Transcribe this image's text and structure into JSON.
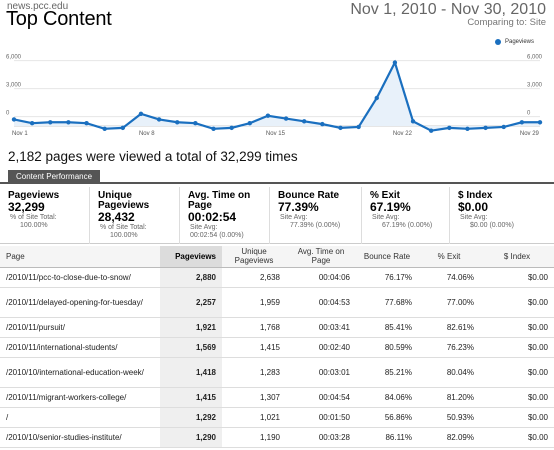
{
  "header": {
    "site": "news.pcc.edu",
    "title": "Top Content",
    "date_range": "Nov 1, 2010 - Nov 30, 2010",
    "comparing": "Comparing to: Site"
  },
  "chart_data": {
    "type": "line",
    "series": [
      {
        "name": "Pageviews",
        "color": "#1a6fbf"
      }
    ],
    "y_ticks_left": [
      "6,000",
      "3,000",
      "0"
    ],
    "y_ticks_right": [
      "6,000",
      "3,000",
      "0"
    ],
    "x_labels": [
      "Nov 1",
      "Nov 8",
      "Nov 15",
      "Nov 22",
      "Nov 29"
    ],
    "ylim": [
      -1000,
      6500
    ],
    "x": [
      1,
      2,
      3,
      4,
      5,
      6,
      7,
      8,
      9,
      10,
      11,
      12,
      13,
      14,
      15,
      16,
      17,
      18,
      19,
      20,
      21,
      22,
      23,
      24,
      25,
      26,
      27,
      28,
      29,
      30
    ],
    "values": [
      -300,
      -700,
      -600,
      -600,
      -700,
      -1300,
      -1200,
      300,
      -300,
      -600,
      -700,
      -1300,
      -1200,
      -700,
      100,
      -200,
      -500,
      -800,
      -1200,
      -1100,
      2000,
      5800,
      -500,
      -1500,
      -1200,
      -1300,
      -1200,
      -1100,
      -600,
      -600
    ]
  },
  "summary_text": "2,182 pages were viewed a total of 32,299 times",
  "tab_label": "Content Performance",
  "metrics": [
    {
      "label": "Pageviews",
      "value": "32,299",
      "sub1": "% of Site Total:",
      "sub2": "100.00%"
    },
    {
      "label": "Unique Pageviews",
      "value": "28,432",
      "sub1": "% of Site Total:",
      "sub2": "100.00%"
    },
    {
      "label": "Avg. Time on Page",
      "value": "00:02:54",
      "sub1": "Site Avg:",
      "sub2": "00:02:54 (0.00%)"
    },
    {
      "label": "Bounce Rate",
      "value": "77.39%",
      "sub1": "Site Avg:",
      "sub2": "77.39% (0.00%)"
    },
    {
      "label": "% Exit",
      "value": "67.19%",
      "sub1": "Site Avg:",
      "sub2": "67.19% (0.00%)"
    },
    {
      "label": "$ Index",
      "value": "$0.00",
      "sub1": "Site Avg:",
      "sub2": "$0.00 (0.00%)"
    }
  ],
  "table": {
    "headers": [
      "Page",
      "Pageviews",
      "Unique Pageviews",
      "Avg. Time on Page",
      "Bounce Rate",
      "% Exit",
      "$ Index"
    ],
    "rows": [
      {
        "page": "/2010/11/pcc-to-close-due-to-snow/",
        "pv": "2,880",
        "upv": "2,638",
        "time": "00:04:06",
        "bounce": "76.17%",
        "exit": "74.06%",
        "index": "$0.00"
      },
      {
        "page": "/2010/11/delayed-opening-for-tuesday/",
        "pv": "2,257",
        "upv": "1,959",
        "time": "00:04:53",
        "bounce": "77.68%",
        "exit": "77.00%",
        "index": "$0.00"
      },
      {
        "page": "/2010/11/pursuit/",
        "pv": "1,921",
        "upv": "1,768",
        "time": "00:03:41",
        "bounce": "85.41%",
        "exit": "82.61%",
        "index": "$0.00"
      },
      {
        "page": "/2010/11/international-students/",
        "pv": "1,569",
        "upv": "1,415",
        "time": "00:02:40",
        "bounce": "80.59%",
        "exit": "76.23%",
        "index": "$0.00"
      },
      {
        "page": "/2010/10/international-education-week/",
        "pv": "1,418",
        "upv": "1,283",
        "time": "00:03:01",
        "bounce": "85.21%",
        "exit": "80.04%",
        "index": "$0.00"
      },
      {
        "page": "/2010/11/migrant-workers-college/",
        "pv": "1,415",
        "upv": "1,307",
        "time": "00:04:54",
        "bounce": "84.06%",
        "exit": "81.20%",
        "index": "$0.00"
      },
      {
        "page": "/",
        "pv": "1,292",
        "upv": "1,021",
        "time": "00:01:50",
        "bounce": "56.86%",
        "exit": "50.93%",
        "index": "$0.00"
      },
      {
        "page": "/2010/10/senior-studies-institute/",
        "pv": "1,290",
        "upv": "1,190",
        "time": "00:03:28",
        "bounce": "86.11%",
        "exit": "82.09%",
        "index": "$0.00"
      }
    ]
  }
}
